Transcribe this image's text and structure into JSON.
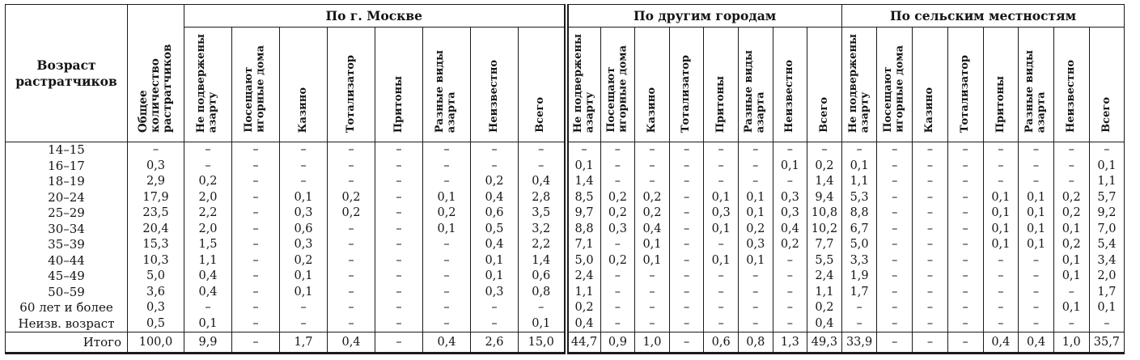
{
  "table": {
    "corner_header": "Возраст\nрастратчиков",
    "total_header": "Общее количество\nрастратчиков",
    "groups": [
      {
        "label": "По г. Москве"
      },
      {
        "label": "По другим городам"
      },
      {
        "label": "По сельским местностям"
      }
    ],
    "sub_headers": [
      "Не подвержены\nазарту",
      "Посещают\nигорные дома",
      "Казино",
      "Тотализатор",
      "Притоны",
      "Разные виды\nазарта",
      "Неизвестно",
      "Всего"
    ],
    "rows": [
      {
        "age": "14–15",
        "total": "–",
        "moscow": [
          "–",
          "–",
          "–",
          "–",
          "–",
          "–",
          "–",
          "–"
        ],
        "cities": [
          "–",
          "–",
          "–",
          "–",
          "–",
          "–",
          "–",
          "–"
        ],
        "rural": [
          "–",
          "–",
          "–",
          "–",
          "–",
          "–",
          "–",
          "–"
        ]
      },
      {
        "age": "16–17",
        "total": "0,3",
        "moscow": [
          "–",
          "–",
          "–",
          "–",
          "–",
          "–",
          "–",
          "–"
        ],
        "cities": [
          "0,1",
          "–",
          "–",
          "–",
          "–",
          "–",
          "0,1",
          "0,2"
        ],
        "rural": [
          "0,1",
          "–",
          "–",
          "–",
          "–",
          "–",
          "–",
          "0,1"
        ]
      },
      {
        "age": "18–19",
        "total": "2,9",
        "moscow": [
          "0,2",
          "–",
          "–",
          "–",
          "–",
          "–",
          "0,2",
          "0,4"
        ],
        "cities": [
          "1,4",
          "–",
          "–",
          "–",
          "–",
          "–",
          "–",
          "1,4"
        ],
        "rural": [
          "1,1",
          "–",
          "–",
          "–",
          "–",
          "–",
          "–",
          "1,1"
        ]
      },
      {
        "age": "20–24",
        "total": "17,9",
        "moscow": [
          "2,0",
          "–",
          "0,1",
          "0,2",
          "–",
          "0,1",
          "0,4",
          "2,8"
        ],
        "cities": [
          "8,5",
          "0,2",
          "0,2",
          "–",
          "0,1",
          "0,1",
          "0,3",
          "9,4"
        ],
        "rural": [
          "5,3",
          "–",
          "–",
          "–",
          "0,1",
          "0,1",
          "0,2",
          "5,7"
        ]
      },
      {
        "age": "25–29",
        "total": "23,5",
        "moscow": [
          "2,2",
          "–",
          "0,3",
          "0,2",
          "–",
          "0,2",
          "0,6",
          "3,5"
        ],
        "cities": [
          "9,7",
          "0,2",
          "0,2",
          "–",
          "0,3",
          "0,1",
          "0,3",
          "10,8"
        ],
        "rural": [
          "8,8",
          "–",
          "–",
          "–",
          "0,1",
          "0,1",
          "0,2",
          "9,2"
        ]
      },
      {
        "age": "30–34",
        "total": "20,4",
        "moscow": [
          "2,0",
          "–",
          "0,6",
          "–",
          "–",
          "0,1",
          "0,5",
          "3,2"
        ],
        "cities": [
          "8,8",
          "0,3",
          "0,4",
          "–",
          "0,1",
          "0,2",
          "0,4",
          "10,2"
        ],
        "rural": [
          "6,7",
          "–",
          "–",
          "–",
          "0,1",
          "0,1",
          "0,1",
          "7,0"
        ]
      },
      {
        "age": "35–39",
        "total": "15,3",
        "moscow": [
          "1,5",
          "–",
          "0,3",
          "–",
          "–",
          "–",
          "0,4",
          "2,2"
        ],
        "cities": [
          "7,1",
          "–",
          "0,1",
          "–",
          "–",
          "0,3",
          "0,2",
          "7,7"
        ],
        "rural": [
          "5,0",
          "–",
          "–",
          "–",
          "0,1",
          "0,1",
          "0,2",
          "5,4"
        ]
      },
      {
        "age": "40–44",
        "total": "10,3",
        "moscow": [
          "1,1",
          "–",
          "0,2",
          "–",
          "–",
          "–",
          "0,1",
          "1,4"
        ],
        "cities": [
          "5,0",
          "0,2",
          "0,1",
          "–",
          "0,1",
          "0,1",
          "–",
          "5,5"
        ],
        "rural": [
          "3,3",
          "–",
          "–",
          "–",
          "–",
          "–",
          "0,1",
          "3,4"
        ]
      },
      {
        "age": "45–49",
        "total": "5,0",
        "moscow": [
          "0,4",
          "–",
          "0,1",
          "–",
          "–",
          "–",
          "0,1",
          "0,6"
        ],
        "cities": [
          "2,4",
          "–",
          "–",
          "–",
          "–",
          "–",
          "–",
          "2,4"
        ],
        "rural": [
          "1,9",
          "–",
          "–",
          "–",
          "–",
          "–",
          "0,1",
          "2,0"
        ]
      },
      {
        "age": "50–59",
        "total": "3,6",
        "moscow": [
          "0,4",
          "–",
          "0,1",
          "–",
          "–",
          "–",
          "0,3",
          "0,8"
        ],
        "cities": [
          "1,1",
          "–",
          "–",
          "–",
          "–",
          "–",
          "–",
          "1,1"
        ],
        "rural": [
          "1,7",
          "–",
          "–",
          "–",
          "–",
          "–",
          "–",
          "1,7"
        ]
      },
      {
        "age": "60 лет и более",
        "total": "0,3",
        "moscow": [
          "–",
          "–",
          "–",
          "–",
          "–",
          "–",
          "–",
          "–"
        ],
        "cities": [
          "0,2",
          "–",
          "–",
          "–",
          "–",
          "–",
          "–",
          "0,2"
        ],
        "rural": [
          "–",
          "–",
          "–",
          "–",
          "–",
          "–",
          "0,1",
          "0,1"
        ]
      },
      {
        "age": "Неизв. возраст",
        "total": "0,5",
        "moscow": [
          "0,1",
          "–",
          "–",
          "–",
          "–",
          "–",
          "–",
          "0,1"
        ],
        "cities": [
          "0,4",
          "–",
          "–",
          "–",
          "–",
          "–",
          "–",
          "0,4"
        ],
        "rural": [
          "–",
          "–",
          "–",
          "–",
          "–",
          "–",
          "–",
          "–"
        ]
      }
    ],
    "totals_row": {
      "age": "Итого",
      "total": "100,0",
      "moscow": [
        "9,9",
        "–",
        "1,7",
        "0,4",
        "–",
        "0,4",
        "2,6",
        "15,0"
      ],
      "cities": [
        "44,7",
        "0,9",
        "1,0",
        "–",
        "0,6",
        "0,8",
        "1,3",
        "49,3"
      ],
      "rural": [
        "33,9",
        "–",
        "–",
        "–",
        "0,4",
        "0,4",
        "1,0",
        "35,7"
      ]
    }
  }
}
